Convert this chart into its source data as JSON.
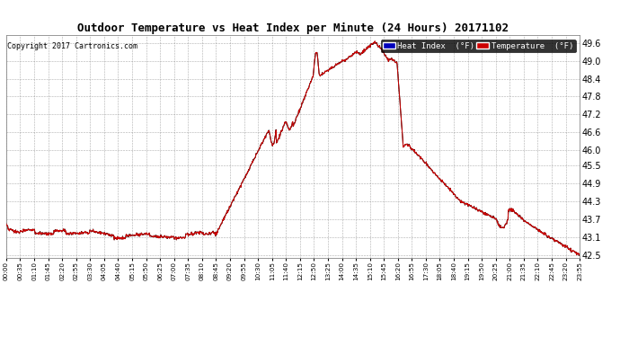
{
  "title": "Outdoor Temperature vs Heat Index per Minute (24 Hours) 20171102",
  "copyright": "Copyright 2017 Cartronics.com",
  "background_color": "#ffffff",
  "grid_color": "#999999",
  "line_color_temp": "#cc0000",
  "line_color_heat": "#000000",
  "ylim": [
    42.4,
    49.85
  ],
  "yticks": [
    42.5,
    43.1,
    43.7,
    44.3,
    44.9,
    45.5,
    46.0,
    46.6,
    47.2,
    47.8,
    48.4,
    49.0,
    49.6
  ],
  "xtick_labels": [
    "00:00",
    "00:35",
    "01:10",
    "01:45",
    "02:20",
    "02:55",
    "03:30",
    "04:05",
    "04:40",
    "05:15",
    "05:50",
    "06:25",
    "07:00",
    "07:35",
    "08:10",
    "08:45",
    "09:20",
    "09:55",
    "10:30",
    "11:05",
    "11:40",
    "12:15",
    "12:50",
    "13:25",
    "14:00",
    "14:35",
    "15:10",
    "15:45",
    "16:20",
    "16:55",
    "17:30",
    "18:05",
    "18:40",
    "19:15",
    "19:50",
    "20:25",
    "21:00",
    "21:35",
    "22:10",
    "22:45",
    "23:20",
    "23:55"
  ],
  "legend_heat_label": "Heat Index  (°F)",
  "legend_temp_label": "Temperature  (°F)",
  "legend_heat_bg": "#0000bb",
  "legend_temp_bg": "#cc0000"
}
